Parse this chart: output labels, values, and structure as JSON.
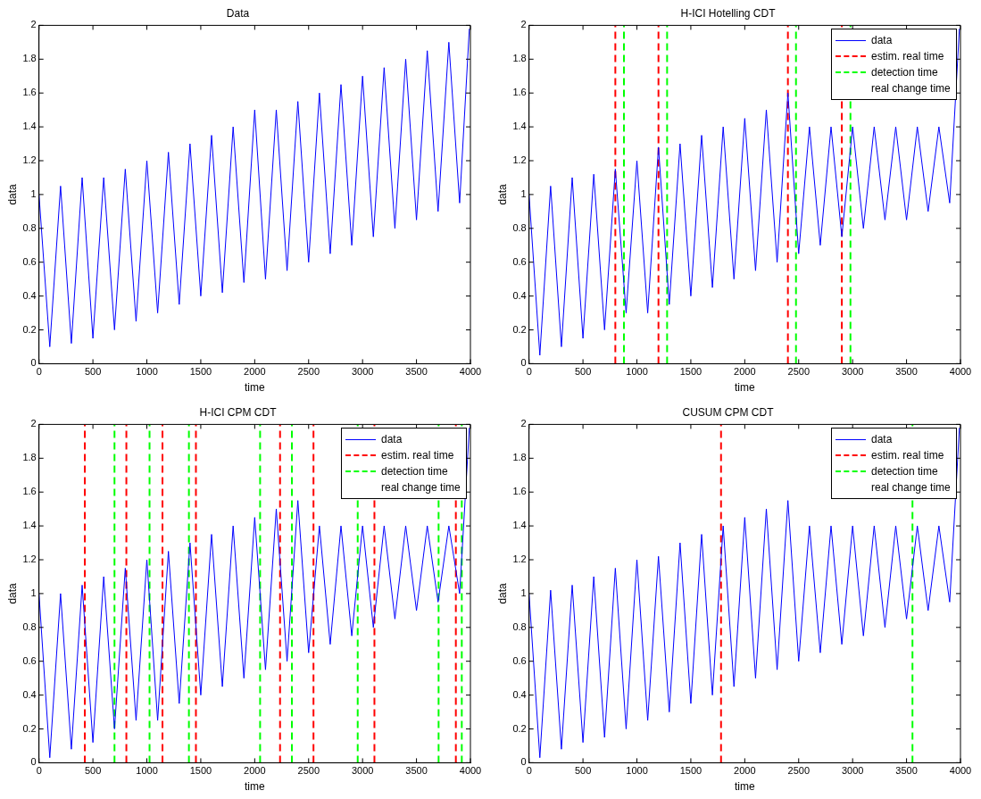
{
  "chart_data": [
    {
      "type": "line",
      "title": "Data",
      "xlabel": "time",
      "ylabel": "data",
      "xlim": [
        0,
        4000
      ],
      "ylim": [
        0,
        2
      ],
      "xticks": [
        0,
        500,
        1000,
        1500,
        2000,
        2500,
        3000,
        3500,
        4000
      ],
      "yticks": [
        0,
        0.2,
        0.4,
        0.6,
        0.8,
        1,
        1.2,
        1.4,
        1.6,
        1.8,
        2
      ],
      "grid": false,
      "legend": false,
      "line_style": "solid",
      "marker": "none",
      "series": [
        {
          "color": "#0000ff",
          "x": [
            0,
            100,
            200,
            300,
            400,
            500,
            600,
            700,
            800,
            900,
            1000,
            1100,
            1200,
            1300,
            1400,
            1500,
            1600,
            1700,
            1800,
            1900,
            2000,
            2100,
            2200,
            2300,
            2400,
            2500,
            2600,
            2700,
            2800,
            2900,
            3000,
            3100,
            3200,
            3300,
            3400,
            3500,
            3600,
            3700,
            3800,
            3900,
            3990
          ],
          "values": [
            1.0,
            0.1,
            1.05,
            0.12,
            1.1,
            0.15,
            1.1,
            0.2,
            1.15,
            0.25,
            1.2,
            0.3,
            1.25,
            0.35,
            1.3,
            0.4,
            1.35,
            0.42,
            1.4,
            0.48,
            1.5,
            0.5,
            1.5,
            0.55,
            1.55,
            0.6,
            1.6,
            0.65,
            1.65,
            0.7,
            1.7,
            0.75,
            1.75,
            0.8,
            1.8,
            0.85,
            1.85,
            0.9,
            1.9,
            0.95,
            1.98
          ]
        }
      ]
    },
    {
      "type": "line",
      "title": "H-ICI Hotelling CDT",
      "xlabel": "time",
      "ylabel": "data",
      "xlim": [
        0,
        4000
      ],
      "ylim": [
        0,
        2
      ],
      "xticks": [
        0,
        500,
        1000,
        1500,
        2000,
        2500,
        3000,
        3500,
        4000
      ],
      "yticks": [
        0,
        0.2,
        0.4,
        0.6,
        0.8,
        1,
        1.2,
        1.4,
        1.6,
        1.8,
        2
      ],
      "grid": false,
      "legend": "top right",
      "marker": "none",
      "series": [
        {
          "name": "data",
          "color": "#0000ff",
          "line_style": "solid",
          "x": [
            0,
            100,
            200,
            300,
            400,
            500,
            600,
            700,
            800,
            900,
            1000,
            1100,
            1200,
            1300,
            1400,
            1500,
            1600,
            1700,
            1800,
            1900,
            2000,
            2100,
            2200,
            2300,
            2400,
            2500,
            2600,
            2700,
            2800,
            2900,
            3000,
            3100,
            3200,
            3300,
            3400,
            3500,
            3600,
            3700,
            3800,
            3900,
            3990
          ],
          "values": [
            1.0,
            0.05,
            1.05,
            0.1,
            1.1,
            0.15,
            1.12,
            0.2,
            1.15,
            0.3,
            1.2,
            0.3,
            1.28,
            0.35,
            1.3,
            0.4,
            1.35,
            0.45,
            1.4,
            0.5,
            1.45,
            0.55,
            1.5,
            0.6,
            1.6,
            0.65,
            1.4,
            0.7,
            1.4,
            0.75,
            1.4,
            0.8,
            1.4,
            0.85,
            1.4,
            0.85,
            1.4,
            0.9,
            1.4,
            0.95,
            1.98
          ]
        },
        {
          "name": "estim. real time",
          "color": "#ff0000",
          "line_style": "dashed",
          "x": [
            800,
            800,
            null,
            1200,
            1200,
            null,
            2400,
            2400,
            null,
            2900,
            2900
          ],
          "values": [
            0,
            2,
            null,
            0,
            2,
            null,
            0,
            2,
            null,
            0,
            2
          ]
        },
        {
          "name": "detection time",
          "color": "#00ff00",
          "line_style": "dashed",
          "x": [
            880,
            880,
            null,
            1280,
            1280,
            null,
            2475,
            2475,
            null,
            2980,
            2980
          ],
          "values": [
            0,
            2,
            null,
            0,
            2,
            null,
            0,
            2,
            null,
            0,
            2
          ]
        },
        {
          "name": "real change time"
        }
      ]
    },
    {
      "type": "line",
      "title": "H-ICI CPM CDT",
      "xlabel": "time",
      "ylabel": "data",
      "xlim": [
        0,
        4000
      ],
      "ylim": [
        0,
        2
      ],
      "xticks": [
        0,
        500,
        1000,
        1500,
        2000,
        2500,
        3000,
        3500,
        4000
      ],
      "yticks": [
        0,
        0.2,
        0.4,
        0.6,
        0.8,
        1,
        1.2,
        1.4,
        1.6,
        1.8,
        2
      ],
      "grid": false,
      "legend": "top right",
      "marker": "none",
      "series": [
        {
          "name": "data",
          "color": "#0000ff",
          "line_style": "solid",
          "x": [
            0,
            100,
            200,
            300,
            400,
            500,
            600,
            700,
            800,
            900,
            1000,
            1100,
            1200,
            1300,
            1400,
            1500,
            1600,
            1700,
            1800,
            1900,
            2000,
            2100,
            2200,
            2300,
            2400,
            2500,
            2600,
            2700,
            2800,
            2900,
            3000,
            3100,
            3200,
            3300,
            3400,
            3500,
            3600,
            3700,
            3800,
            3900,
            3990
          ],
          "values": [
            1.0,
            0.03,
            1.0,
            0.08,
            1.05,
            0.12,
            1.1,
            0.2,
            1.15,
            0.25,
            1.2,
            0.25,
            1.25,
            0.35,
            1.3,
            0.4,
            1.35,
            0.45,
            1.4,
            0.5,
            1.45,
            0.55,
            1.5,
            0.6,
            1.55,
            0.65,
            1.4,
            0.7,
            1.4,
            0.75,
            1.4,
            0.8,
            1.4,
            0.85,
            1.4,
            0.9,
            1.4,
            0.95,
            1.4,
            1.0,
            1.98
          ]
        },
        {
          "name": "estim. real time",
          "color": "#ff0000",
          "line_style": "dashed",
          "x": [
            425,
            425,
            null,
            810,
            810,
            null,
            1145,
            1145,
            null,
            1455,
            1455,
            null,
            2235,
            2235,
            null,
            2545,
            2545,
            null,
            3110,
            3110,
            null,
            3865,
            3865
          ],
          "values": [
            0,
            2,
            null,
            0,
            2,
            null,
            0,
            2,
            null,
            0,
            2,
            null,
            0,
            2,
            null,
            0,
            2,
            null,
            0,
            2,
            null,
            0,
            2
          ]
        },
        {
          "name": "detection time",
          "color": "#00ff00",
          "line_style": "dashed",
          "x": [
            700,
            700,
            null,
            1025,
            1025,
            null,
            1390,
            1390,
            null,
            2050,
            2050,
            null,
            2345,
            2345,
            null,
            2955,
            2955,
            null,
            3705,
            3705,
            null,
            3920,
            3920
          ],
          "values": [
            0,
            2,
            null,
            0,
            2,
            null,
            0,
            2,
            null,
            0,
            2,
            null,
            0,
            2,
            null,
            0,
            2,
            null,
            0,
            2,
            null,
            0,
            2
          ]
        },
        {
          "name": "real change time"
        }
      ]
    },
    {
      "type": "line",
      "title": "CUSUM CPM CDT",
      "xlabel": "time",
      "ylabel": "data",
      "xlim": [
        0,
        4000
      ],
      "ylim": [
        0,
        2
      ],
      "xticks": [
        0,
        500,
        1000,
        1500,
        2000,
        2500,
        3000,
        3500,
        4000
      ],
      "yticks": [
        0,
        0.2,
        0.4,
        0.6,
        0.8,
        1,
        1.2,
        1.4,
        1.6,
        1.8,
        2
      ],
      "grid": false,
      "legend": "top right",
      "marker": "none",
      "series": [
        {
          "name": "data",
          "color": "#0000ff",
          "line_style": "solid",
          "x": [
            0,
            100,
            200,
            300,
            400,
            500,
            600,
            700,
            800,
            900,
            1000,
            1100,
            1200,
            1300,
            1400,
            1500,
            1600,
            1700,
            1800,
            1900,
            2000,
            2100,
            2200,
            2300,
            2400,
            2500,
            2600,
            2700,
            2800,
            2900,
            3000,
            3100,
            3200,
            3300,
            3400,
            3500,
            3600,
            3700,
            3800,
            3900,
            3990
          ],
          "values": [
            1.0,
            0.03,
            1.02,
            0.08,
            1.05,
            0.12,
            1.1,
            0.15,
            1.15,
            0.2,
            1.2,
            0.25,
            1.22,
            0.3,
            1.3,
            0.35,
            1.35,
            0.4,
            1.4,
            0.45,
            1.45,
            0.5,
            1.5,
            0.55,
            1.55,
            0.6,
            1.4,
            0.65,
            1.4,
            0.7,
            1.4,
            0.75,
            1.4,
            0.8,
            1.4,
            0.85,
            1.4,
            0.9,
            1.4,
            0.95,
            1.98
          ]
        },
        {
          "name": "estim. real time",
          "color": "#ff0000",
          "line_style": "dashed",
          "x": [
            1780,
            1780
          ],
          "values": [
            0,
            2
          ]
        },
        {
          "name": "detection time",
          "color": "#00ff00",
          "line_style": "dashed",
          "x": [
            3555,
            3555
          ],
          "values": [
            0,
            2
          ]
        },
        {
          "name": "real change time"
        }
      ]
    }
  ]
}
